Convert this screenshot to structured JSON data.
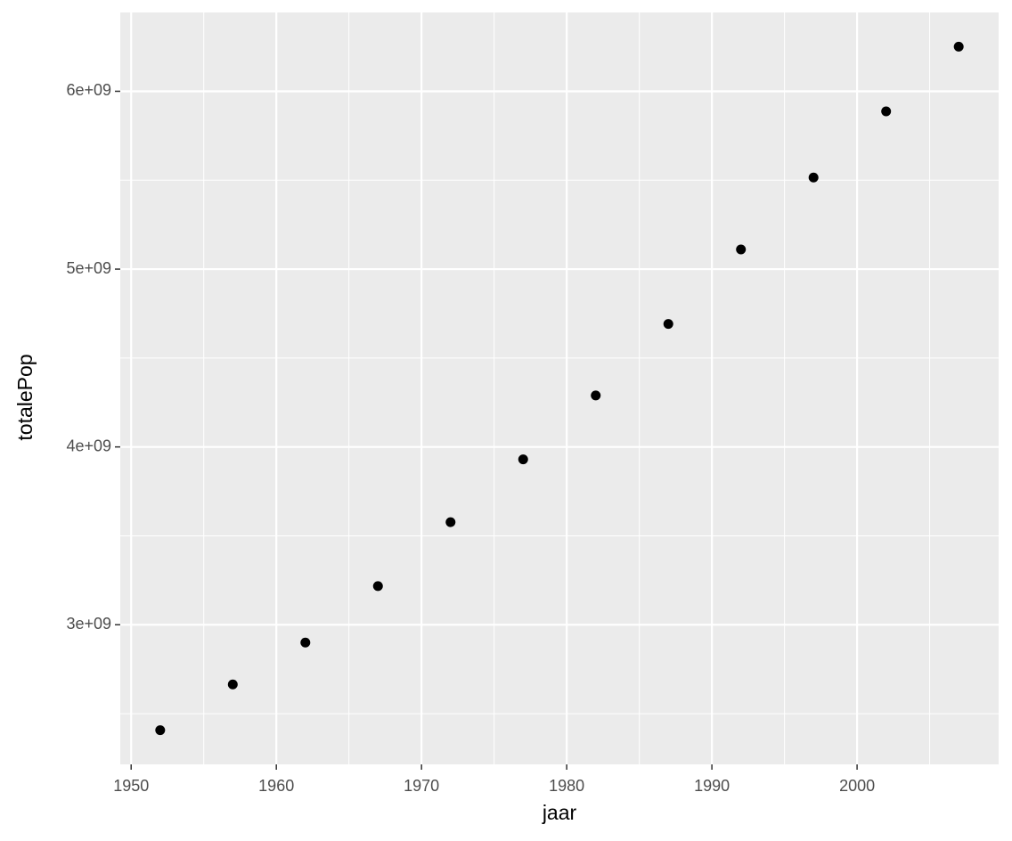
{
  "chart_data": {
    "type": "scatter",
    "x_label": "jaar",
    "y_label": "totalePop",
    "x": [
      1952,
      1957,
      1962,
      1967,
      1972,
      1977,
      1982,
      1987,
      1992,
      1997,
      2002,
      2007
    ],
    "values": [
      2406957150,
      2664404580,
      2899782974,
      3217478384,
      3576977158,
      3930045807,
      4289436840,
      4691477418,
      5110710260,
      5515204472,
      5886977579,
      6251013179
    ],
    "color": "#000000",
    "xlim": [
      1949.25,
      2009.75
    ],
    "xticks": [
      1950,
      1960,
      1970,
      1980,
      1990,
      2000
    ],
    "xminor": [
      1955,
      1965,
      1975,
      1985,
      1995,
      2005
    ],
    "ylim": [
      2214754849,
      6443215510
    ],
    "yticks": [
      {
        "value": 3000000000,
        "label": "3e+09"
      },
      {
        "value": 4000000000,
        "label": "4e+09"
      },
      {
        "value": 5000000000,
        "label": "5e+09"
      },
      {
        "value": 6000000000,
        "label": "6e+09"
      }
    ],
    "yminor": [
      2500000000,
      3500000000,
      4500000000,
      5500000000
    ],
    "grid": true,
    "panel_color": "#ebebeb"
  }
}
